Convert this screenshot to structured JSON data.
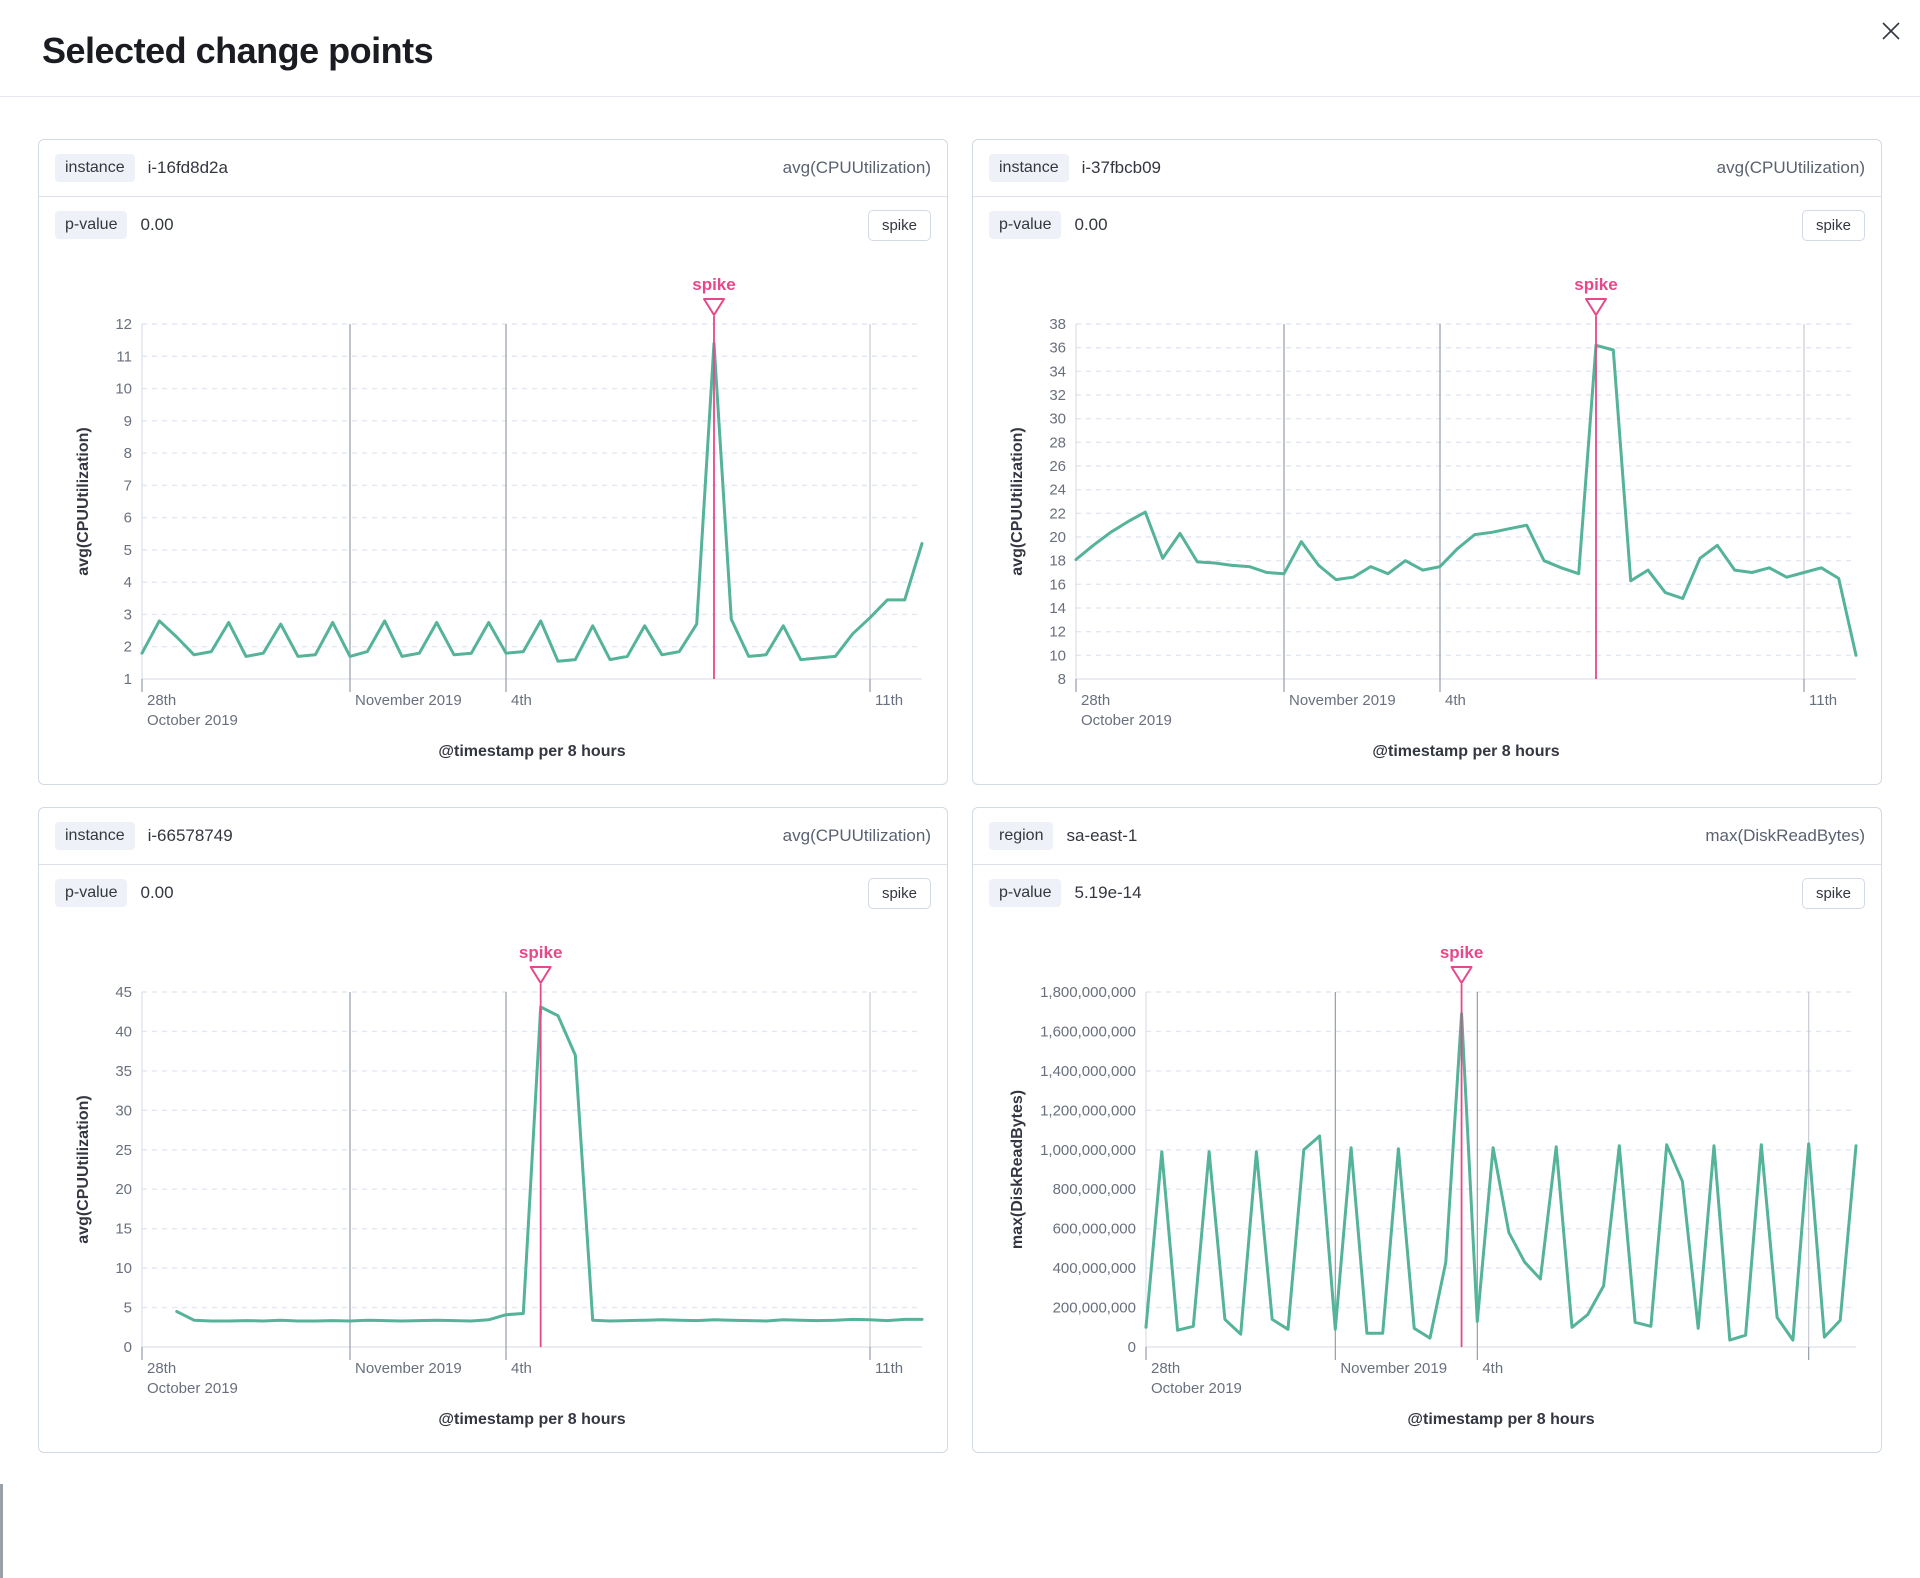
{
  "modal": {
    "title": "Selected change points",
    "close_icon": "x"
  },
  "colors": {
    "line": "#54b399",
    "spike": "#e7478b",
    "grid_dash": "#e3e7f0",
    "grid_strong": "#959daa",
    "grid_light": "#c8ccd5",
    "axis": "#d6dae3",
    "text": "#343741",
    "muted": "#69707d"
  },
  "panels": [
    {
      "field_label": "instance",
      "field_value": "i-16fd8d2a",
      "metric": "avg(CPUUtilization)",
      "p_label": "p-value",
      "p_value": "0.00",
      "type_badge": "spike",
      "chart_data": {
        "type": "line",
        "xlabel": "@timestamp per 8 hours",
        "ylabel": "avg(CPUUtilization)",
        "ylim": [
          1,
          12
        ],
        "ytick": 1,
        "y_format": "plain",
        "x_days": 15,
        "points_per_day": 3,
        "x_ticks": [
          {
            "day": 0,
            "label1": "28th",
            "label2": "October 2019",
            "line": "tick"
          },
          {
            "day": 4,
            "label1": "November 2019",
            "line": "strong"
          },
          {
            "day": 7,
            "label1": "4th",
            "line": "strong"
          },
          {
            "day": 14,
            "label1": "11th",
            "line": "light"
          }
        ],
        "annotation": {
          "label": "spike",
          "index": 33
        },
        "values": [
          1.8,
          2.8,
          2.3,
          1.75,
          1.85,
          2.75,
          1.7,
          1.8,
          2.7,
          1.7,
          1.75,
          2.75,
          1.7,
          1.85,
          2.8,
          1.7,
          1.8,
          2.75,
          1.75,
          1.8,
          2.75,
          1.8,
          1.85,
          2.8,
          1.55,
          1.6,
          2.65,
          1.6,
          1.7,
          2.65,
          1.75,
          1.85,
          2.7,
          11.4,
          2.85,
          1.7,
          1.75,
          2.65,
          1.6,
          1.65,
          1.7,
          2.4,
          2.9,
          3.45,
          3.45,
          5.2
        ]
      }
    },
    {
      "field_label": "instance",
      "field_value": "i-37fbcb09",
      "metric": "avg(CPUUtilization)",
      "p_label": "p-value",
      "p_value": "0.00",
      "type_badge": "spike",
      "chart_data": {
        "type": "line",
        "xlabel": "@timestamp per 8 hours",
        "ylabel": "avg(CPUUtilization)",
        "ylim": [
          8,
          38
        ],
        "ytick": 2,
        "y_format": "plain",
        "x_days": 15,
        "points_per_day": 3,
        "x_ticks": [
          {
            "day": 0,
            "label1": "28th",
            "label2": "October 2019",
            "line": "tick"
          },
          {
            "day": 4,
            "label1": "November 2019",
            "line": "strong"
          },
          {
            "day": 7,
            "label1": "4th",
            "line": "strong"
          },
          {
            "day": 14,
            "label1": "11th",
            "line": "light"
          }
        ],
        "annotation": {
          "label": "spike",
          "index": 30
        },
        "values": [
          18.1,
          19.3,
          20.4,
          21.3,
          22.1,
          18.2,
          20.3,
          17.9,
          17.8,
          17.6,
          17.5,
          17.0,
          16.9,
          19.6,
          17.6,
          16.4,
          16.6,
          17.5,
          16.9,
          18.0,
          17.2,
          17.5,
          19.0,
          20.2,
          20.4,
          20.7,
          21.0,
          18.0,
          17.4,
          16.9,
          36.2,
          35.8,
          16.3,
          17.2,
          15.3,
          14.8,
          18.2,
          19.3,
          17.2,
          17.0,
          17.4,
          16.6,
          17.0,
          17.4,
          16.5,
          10.0
        ]
      }
    },
    {
      "field_label": "instance",
      "field_value": "i-66578749",
      "metric": "avg(CPUUtilization)",
      "p_label": "p-value",
      "p_value": "0.00",
      "type_badge": "spike",
      "chart_data": {
        "type": "line",
        "xlabel": "@timestamp per 8 hours",
        "ylabel": "avg(CPUUtilization)",
        "ylim": [
          0,
          45
        ],
        "ytick": 5,
        "y_format": "plain",
        "x_days": 15,
        "points_per_day": 3,
        "x_ticks": [
          {
            "day": 0,
            "label1": "28th",
            "label2": "October 2019",
            "line": "tick"
          },
          {
            "day": 4,
            "label1": "November 2019",
            "line": "strong"
          },
          {
            "day": 7,
            "label1": "4th",
            "line": "strong"
          },
          {
            "day": 14,
            "label1": "11th",
            "line": "light"
          }
        ],
        "annotation": {
          "label": "spike",
          "index": 23
        },
        "values": [
          null,
          null,
          4.5,
          3.4,
          3.3,
          3.3,
          3.35,
          3.3,
          3.4,
          3.3,
          3.3,
          3.35,
          3.3,
          3.4,
          3.35,
          3.3,
          3.35,
          3.4,
          3.35,
          3.3,
          3.45,
          4.1,
          4.25,
          43.1,
          42.0,
          37.0,
          3.4,
          3.3,
          3.35,
          3.4,
          3.45,
          3.4,
          3.35,
          3.45,
          3.4,
          3.35,
          3.3,
          3.45,
          3.4,
          3.35,
          3.4,
          3.5,
          3.45,
          3.35,
          3.5,
          3.5
        ]
      }
    },
    {
      "field_label": "region",
      "field_value": "sa-east-1",
      "metric": "max(DiskReadBytes)",
      "p_label": "p-value",
      "p_value": "5.19e-14",
      "type_badge": "spike",
      "chart_data": {
        "type": "line",
        "xlabel": "@timestamp per 8 hours",
        "ylabel": "max(DiskReadBytes)",
        "ylim": [
          0,
          1800000000
        ],
        "ytick": 200000000,
        "y_format": "comma",
        "x_days": 15,
        "points_per_day": 3,
        "x_ticks": [
          {
            "day": 0,
            "label1": "28th",
            "label2": "October 2019",
            "line": "tick"
          },
          {
            "day": 4,
            "label1": "November 2019",
            "line": "strong"
          },
          {
            "day": 7,
            "label1": "4th",
            "line": "strong"
          },
          {
            "day": 14,
            "line": "light"
          }
        ],
        "annotation": {
          "label": "spike",
          "index": 20
        },
        "values": [
          100000000,
          990000000,
          85000000,
          105000000,
          990000000,
          140000000,
          65000000,
          990000000,
          140000000,
          90000000,
          1000000000,
          1070000000,
          90000000,
          1010000000,
          70000000,
          70000000,
          1005000000,
          95000000,
          45000000,
          430000000,
          1690000000,
          130000000,
          1010000000,
          580000000,
          430000000,
          345000000,
          1015000000,
          100000000,
          165000000,
          310000000,
          1020000000,
          125000000,
          105000000,
          1025000000,
          840000000,
          95000000,
          1020000000,
          35000000,
          60000000,
          1025000000,
          150000000,
          35000000,
          1030000000,
          50000000,
          135000000,
          1020000000
        ]
      }
    }
  ]
}
